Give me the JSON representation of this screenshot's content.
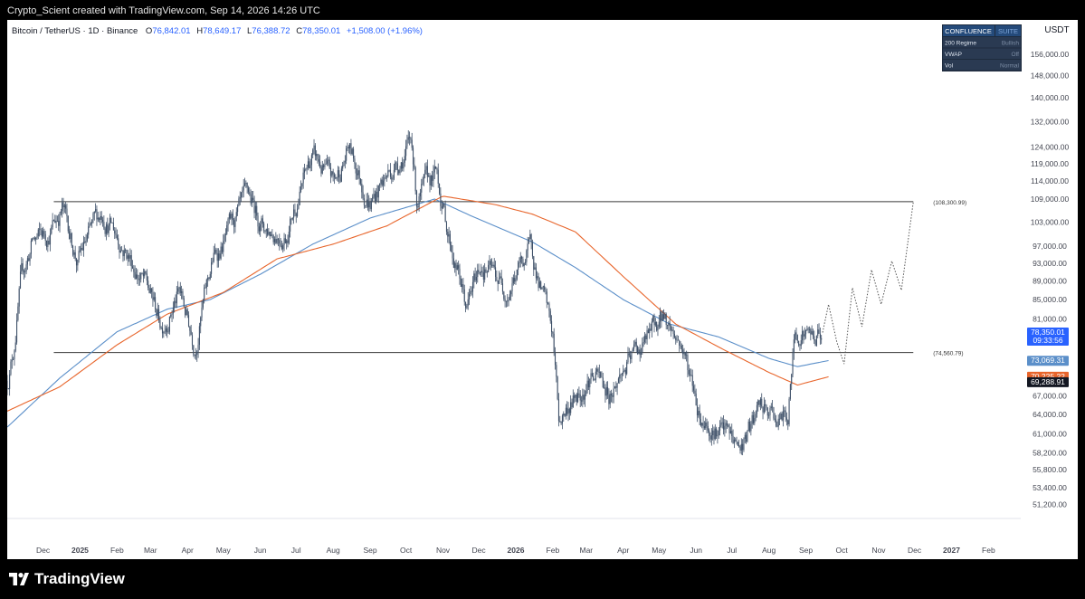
{
  "attribution": "Crypto_Scient created with TradingView.com, Sep 14, 2026 14:26 UTC",
  "brand": {
    "name": "TradingView",
    "logo_icon": "tradingview-logo-icon"
  },
  "colors": {
    "background": "#ffffff",
    "candle": "#3e5068",
    "ma_blue": "#5b8fc9",
    "ma_orange": "#e8652b",
    "level_line": "#3a3a3a",
    "price_badge": "#2962ff",
    "blue_badge": "#5b8fc9",
    "orange_badge": "#e8652b",
    "dark_badge": "#131722",
    "text": "#131722",
    "axis_text": "#434651"
  },
  "chart_data": {
    "type": "candlestick",
    "symbol": "Bitcoin / TetherUS",
    "interval": "1D",
    "exchange": "Binance",
    "ohlc": {
      "open": "76,842.01",
      "high": "78,649.17",
      "low": "76,388.72",
      "close": "78,350.01",
      "change": "+1,508.00 (+1.96%)"
    },
    "y_unit": "USDT",
    "y_scale": "log",
    "y_ticks": [
      51200,
      53400,
      55800,
      58200,
      61000,
      64000,
      67000,
      81000,
      85000,
      89000,
      93000,
      97000,
      103000,
      109000,
      114000,
      119000,
      124000,
      132000,
      140000,
      148000,
      156000
    ],
    "y_tick_labels": [
      "51,200.00",
      "53,400.00",
      "55,800.00",
      "58,200.00",
      "61,000.00",
      "64,000.00",
      "67,000.00",
      "81,000.00",
      "85,000.00",
      "89,000.00",
      "93,000.00",
      "97,000.00",
      "103,000.00",
      "109,000.00",
      "114,000.00",
      "119,000.00",
      "124,000.00",
      "132,000.00",
      "140,000.00",
      "148,000.00",
      "156,000.00"
    ],
    "x_start": "2024-11-01",
    "x_end": "2027-02-28",
    "x_ticks": [
      {
        "date": "2024-12-01",
        "label": "Dec",
        "bold": false
      },
      {
        "date": "2025-01-01",
        "label": "2025",
        "bold": true
      },
      {
        "date": "2025-02-01",
        "label": "Feb",
        "bold": false
      },
      {
        "date": "2025-03-01",
        "label": "Mar",
        "bold": false
      },
      {
        "date": "2025-04-01",
        "label": "Apr",
        "bold": false
      },
      {
        "date": "2025-05-01",
        "label": "May",
        "bold": false
      },
      {
        "date": "2025-06-01",
        "label": "Jun",
        "bold": false
      },
      {
        "date": "2025-07-01",
        "label": "Jul",
        "bold": false
      },
      {
        "date": "2025-08-01",
        "label": "Aug",
        "bold": false
      },
      {
        "date": "2025-09-01",
        "label": "Sep",
        "bold": false
      },
      {
        "date": "2025-10-01",
        "label": "Oct",
        "bold": false
      },
      {
        "date": "2025-11-01",
        "label": "Nov",
        "bold": false
      },
      {
        "date": "2025-12-01",
        "label": "Dec",
        "bold": false
      },
      {
        "date": "2026-01-01",
        "label": "2026",
        "bold": true
      },
      {
        "date": "2026-02-01",
        "label": "Feb",
        "bold": false
      },
      {
        "date": "2026-03-01",
        "label": "Mar",
        "bold": false
      },
      {
        "date": "2026-04-01",
        "label": "Apr",
        "bold": false
      },
      {
        "date": "2026-05-01",
        "label": "May",
        "bold": false
      },
      {
        "date": "2026-06-01",
        "label": "Jun",
        "bold": false
      },
      {
        "date": "2026-07-01",
        "label": "Jul",
        "bold": false
      },
      {
        "date": "2026-08-01",
        "label": "Aug",
        "bold": false
      },
      {
        "date": "2026-09-01",
        "label": "Sep",
        "bold": false
      },
      {
        "date": "2026-10-01",
        "label": "Oct",
        "bold": false
      },
      {
        "date": "2026-11-01",
        "label": "Nov",
        "bold": false
      },
      {
        "date": "2026-12-01",
        "label": "Dec",
        "bold": false
      },
      {
        "date": "2027-01-01",
        "label": "2027",
        "bold": true
      },
      {
        "date": "2027-02-01",
        "label": "Feb",
        "bold": false
      }
    ],
    "price_path": [
      {
        "date": "2024-11-01",
        "price": 69500
      },
      {
        "date": "2024-11-06",
        "price": 75000
      },
      {
        "date": "2024-11-12",
        "price": 88000
      },
      {
        "date": "2024-11-22",
        "price": 98000
      },
      {
        "date": "2024-12-05",
        "price": 100000
      },
      {
        "date": "2024-12-17",
        "price": 107000
      },
      {
        "date": "2024-12-30",
        "price": 93500
      },
      {
        "date": "2025-01-20",
        "price": 106000
      },
      {
        "date": "2025-02-05",
        "price": 98000
      },
      {
        "date": "2025-02-25",
        "price": 88000
      },
      {
        "date": "2025-03-10",
        "price": 80000
      },
      {
        "date": "2025-03-25",
        "price": 86500
      },
      {
        "date": "2025-04-07",
        "price": 76500
      },
      {
        "date": "2025-04-22",
        "price": 93500
      },
      {
        "date": "2025-05-22",
        "price": 108500
      },
      {
        "date": "2025-06-05",
        "price": 101500
      },
      {
        "date": "2025-06-22",
        "price": 100500
      },
      {
        "date": "2025-07-14",
        "price": 121000
      },
      {
        "date": "2025-08-02",
        "price": 113000
      },
      {
        "date": "2025-08-14",
        "price": 123500
      },
      {
        "date": "2025-09-01",
        "price": 108500
      },
      {
        "date": "2025-09-18",
        "price": 117000
      },
      {
        "date": "2025-10-06",
        "price": 125500
      },
      {
        "date": "2025-10-10",
        "price": 109000
      },
      {
        "date": "2025-10-27",
        "price": 115500
      },
      {
        "date": "2025-11-05",
        "price": 101000
      },
      {
        "date": "2025-11-21",
        "price": 83000
      },
      {
        "date": "2025-12-03",
        "price": 93000
      },
      {
        "date": "2025-12-25",
        "price": 87500
      },
      {
        "date": "2026-01-14",
        "price": 96500
      },
      {
        "date": "2026-02-01",
        "price": 77500
      },
      {
        "date": "2026-02-06",
        "price": 63000
      },
      {
        "date": "2026-03-05",
        "price": 71000
      },
      {
        "date": "2026-03-20",
        "price": 67500
      },
      {
        "date": "2026-04-10",
        "price": 74000
      },
      {
        "date": "2026-05-05",
        "price": 81500
      },
      {
        "date": "2026-05-20",
        "price": 76000
      },
      {
        "date": "2026-06-05",
        "price": 64000
      },
      {
        "date": "2026-06-25",
        "price": 61000
      },
      {
        "date": "2026-07-08",
        "price": 58800
      },
      {
        "date": "2026-07-25",
        "price": 64500
      },
      {
        "date": "2026-08-10",
        "price": 63000
      },
      {
        "date": "2026-08-17",
        "price": 63500
      },
      {
        "date": "2026-08-22",
        "price": 76500
      },
      {
        "date": "2026-08-28",
        "price": 79800
      },
      {
        "date": "2026-09-05",
        "price": 77500
      },
      {
        "date": "2026-09-14",
        "price": 78350
      }
    ],
    "projection_path": [
      {
        "date": "2026-09-15",
        "price": 78350
      },
      {
        "date": "2026-09-20",
        "price": 84000
      },
      {
        "date": "2026-09-27",
        "price": 76500
      },
      {
        "date": "2026-10-03",
        "price": 72500
      },
      {
        "date": "2026-10-10",
        "price": 87500
      },
      {
        "date": "2026-10-18",
        "price": 79500
      },
      {
        "date": "2026-10-26",
        "price": 91500
      },
      {
        "date": "2026-11-03",
        "price": 84000
      },
      {
        "date": "2026-11-12",
        "price": 93500
      },
      {
        "date": "2026-11-20",
        "price": 87000
      },
      {
        "date": "2026-11-30",
        "price": 108300
      }
    ],
    "ma_blue": [
      {
        "date": "2024-11-01",
        "price": 62000
      },
      {
        "date": "2024-12-15",
        "price": 70000
      },
      {
        "date": "2025-02-01",
        "price": 78500
      },
      {
        "date": "2025-03-15",
        "price": 83000
      },
      {
        "date": "2025-04-20",
        "price": 85000
      },
      {
        "date": "2025-06-01",
        "price": 90500
      },
      {
        "date": "2025-07-15",
        "price": 97500
      },
      {
        "date": "2025-09-01",
        "price": 104000
      },
      {
        "date": "2025-10-25",
        "price": 109000
      },
      {
        "date": "2025-11-25",
        "price": 104500
      },
      {
        "date": "2026-01-15",
        "price": 98000
      },
      {
        "date": "2026-02-20",
        "price": 92000
      },
      {
        "date": "2026-04-01",
        "price": 85000
      },
      {
        "date": "2026-05-10",
        "price": 80000
      },
      {
        "date": "2026-06-20",
        "price": 77500
      },
      {
        "date": "2026-08-01",
        "price": 73500
      },
      {
        "date": "2026-08-25",
        "price": 72000
      },
      {
        "date": "2026-09-20",
        "price": 73100
      }
    ],
    "ma_orange": [
      {
        "date": "2024-11-01",
        "price": 64500
      },
      {
        "date": "2024-12-15",
        "price": 68500
      },
      {
        "date": "2025-02-01",
        "price": 76000
      },
      {
        "date": "2025-03-15",
        "price": 82000
      },
      {
        "date": "2025-05-01",
        "price": 86500
      },
      {
        "date": "2025-06-15",
        "price": 94000
      },
      {
        "date": "2025-08-01",
        "price": 97500
      },
      {
        "date": "2025-09-15",
        "price": 102000
      },
      {
        "date": "2025-11-01",
        "price": 109800
      },
      {
        "date": "2025-12-15",
        "price": 107500
      },
      {
        "date": "2026-01-15",
        "price": 105000
      },
      {
        "date": "2026-02-20",
        "price": 100500
      },
      {
        "date": "2026-04-01",
        "price": 90000
      },
      {
        "date": "2026-05-15",
        "price": 80000
      },
      {
        "date": "2026-06-25",
        "price": 75000
      },
      {
        "date": "2026-08-01",
        "price": 71000
      },
      {
        "date": "2026-08-25",
        "price": 68800
      },
      {
        "date": "2026-09-20",
        "price": 70225
      }
    ],
    "levels": [
      {
        "name": "upper-level",
        "price": 108300.99,
        "label": "(108,300.99)",
        "start": "2024-12-10",
        "end": "2026-11-30"
      },
      {
        "name": "lower-level",
        "price": 74560.79,
        "label": "(74,560.79)",
        "start": "2024-12-10",
        "end": "2026-11-30"
      }
    ],
    "price_badges": [
      {
        "name": "last-price-badge",
        "price": 78350.01,
        "line1": "78,350.01",
        "line2": "09:33:56",
        "color": "#2962ff",
        "text_color": "#ffffff"
      },
      {
        "name": "blue-ma-badge",
        "price": 73069.31,
        "line1": "73,069.31",
        "color": "#5b8fc9",
        "text_color": "#ffffff"
      },
      {
        "name": "orange-ma-badge",
        "price": 70225.22,
        "line1": "70,225.22",
        "color": "#e8652b",
        "text_color": "#ffffff"
      },
      {
        "name": "dark-badge",
        "price": 69288.91,
        "line1": "69,288.91",
        "color": "#131722",
        "text_color": "#ffffff"
      }
    ]
  },
  "confluence_panel": {
    "header_left": "CONFLUENCE",
    "header_right": "SUITE",
    "rows": [
      {
        "label": "200 Regime",
        "value": "Bullish"
      },
      {
        "label": "VWAP",
        "value": "Off"
      },
      {
        "label": "Vol",
        "value": "Normal"
      }
    ]
  }
}
